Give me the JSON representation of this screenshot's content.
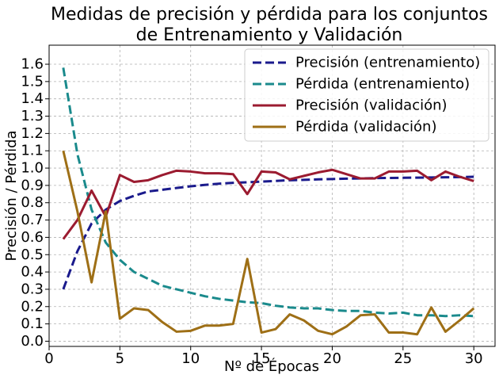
{
  "chart_data": {
    "type": "line",
    "title": [
      "Medidas de precisión y pérdida para los conjuntos",
      "de Entrenamiento y Validación"
    ],
    "xlabel": "Nº de Épocas",
    "ylabel": "Precisión / Pérdida",
    "xlim": [
      0,
      31.5
    ],
    "ylim": [
      -0.03,
      1.71
    ],
    "xticks": [
      0,
      5,
      10,
      15,
      20,
      25,
      30
    ],
    "yticks": [
      0.0,
      0.1,
      0.2,
      0.3,
      0.4,
      0.5,
      0.6,
      0.7,
      0.8,
      0.9,
      1.0,
      1.1,
      1.2,
      1.3,
      1.4,
      1.5,
      1.6
    ],
    "grid": true,
    "legend_position": "top-right",
    "x": [
      1,
      2,
      3,
      4,
      5,
      6,
      7,
      8,
      9,
      10,
      11,
      12,
      13,
      14,
      15,
      16,
      17,
      18,
      19,
      20,
      21,
      22,
      23,
      24,
      25,
      26,
      27,
      28,
      29,
      30
    ],
    "series": [
      {
        "name": "Precisión (entrenamiento)",
        "color": "#1a1a8c",
        "dashed": true,
        "values": [
          0.3,
          0.52,
          0.68,
          0.76,
          0.81,
          0.84,
          0.865,
          0.875,
          0.885,
          0.895,
          0.903,
          0.91,
          0.915,
          0.918,
          0.922,
          0.926,
          0.93,
          0.932,
          0.935,
          0.937,
          0.939,
          0.94,
          0.942,
          0.943,
          0.944,
          0.945,
          0.946,
          0.947,
          0.948,
          0.95
        ]
      },
      {
        "name": "Pérdida (entrenamiento)",
        "color": "#1a8a8c",
        "dashed": true,
        "values": [
          1.58,
          1.08,
          0.76,
          0.57,
          0.47,
          0.4,
          0.36,
          0.32,
          0.3,
          0.28,
          0.26,
          0.245,
          0.235,
          0.225,
          0.22,
          0.205,
          0.195,
          0.19,
          0.19,
          0.18,
          0.175,
          0.175,
          0.165,
          0.16,
          0.165,
          0.15,
          0.15,
          0.145,
          0.15,
          0.145
        ]
      },
      {
        "name": "Precisión (validación)",
        "color": "#9b1b30",
        "dashed": false,
        "values": [
          0.59,
          0.7,
          0.87,
          0.72,
          0.96,
          0.92,
          0.93,
          0.96,
          0.985,
          0.98,
          0.97,
          0.97,
          0.965,
          0.85,
          0.98,
          0.975,
          0.935,
          0.955,
          0.975,
          0.99,
          0.965,
          0.94,
          0.94,
          0.98,
          0.98,
          0.985,
          0.93,
          0.98,
          0.95,
          0.925
        ]
      },
      {
        "name": "Pérdida (validación)",
        "color": "#9e6f16",
        "dashed": false,
        "values": [
          1.1,
          0.75,
          0.34,
          0.75,
          0.13,
          0.19,
          0.18,
          0.11,
          0.055,
          0.06,
          0.09,
          0.09,
          0.1,
          0.475,
          0.05,
          0.07,
          0.155,
          0.12,
          0.06,
          0.04,
          0.085,
          0.15,
          0.155,
          0.05,
          0.05,
          0.04,
          0.195,
          0.055,
          0.12,
          0.19
        ]
      }
    ]
  }
}
